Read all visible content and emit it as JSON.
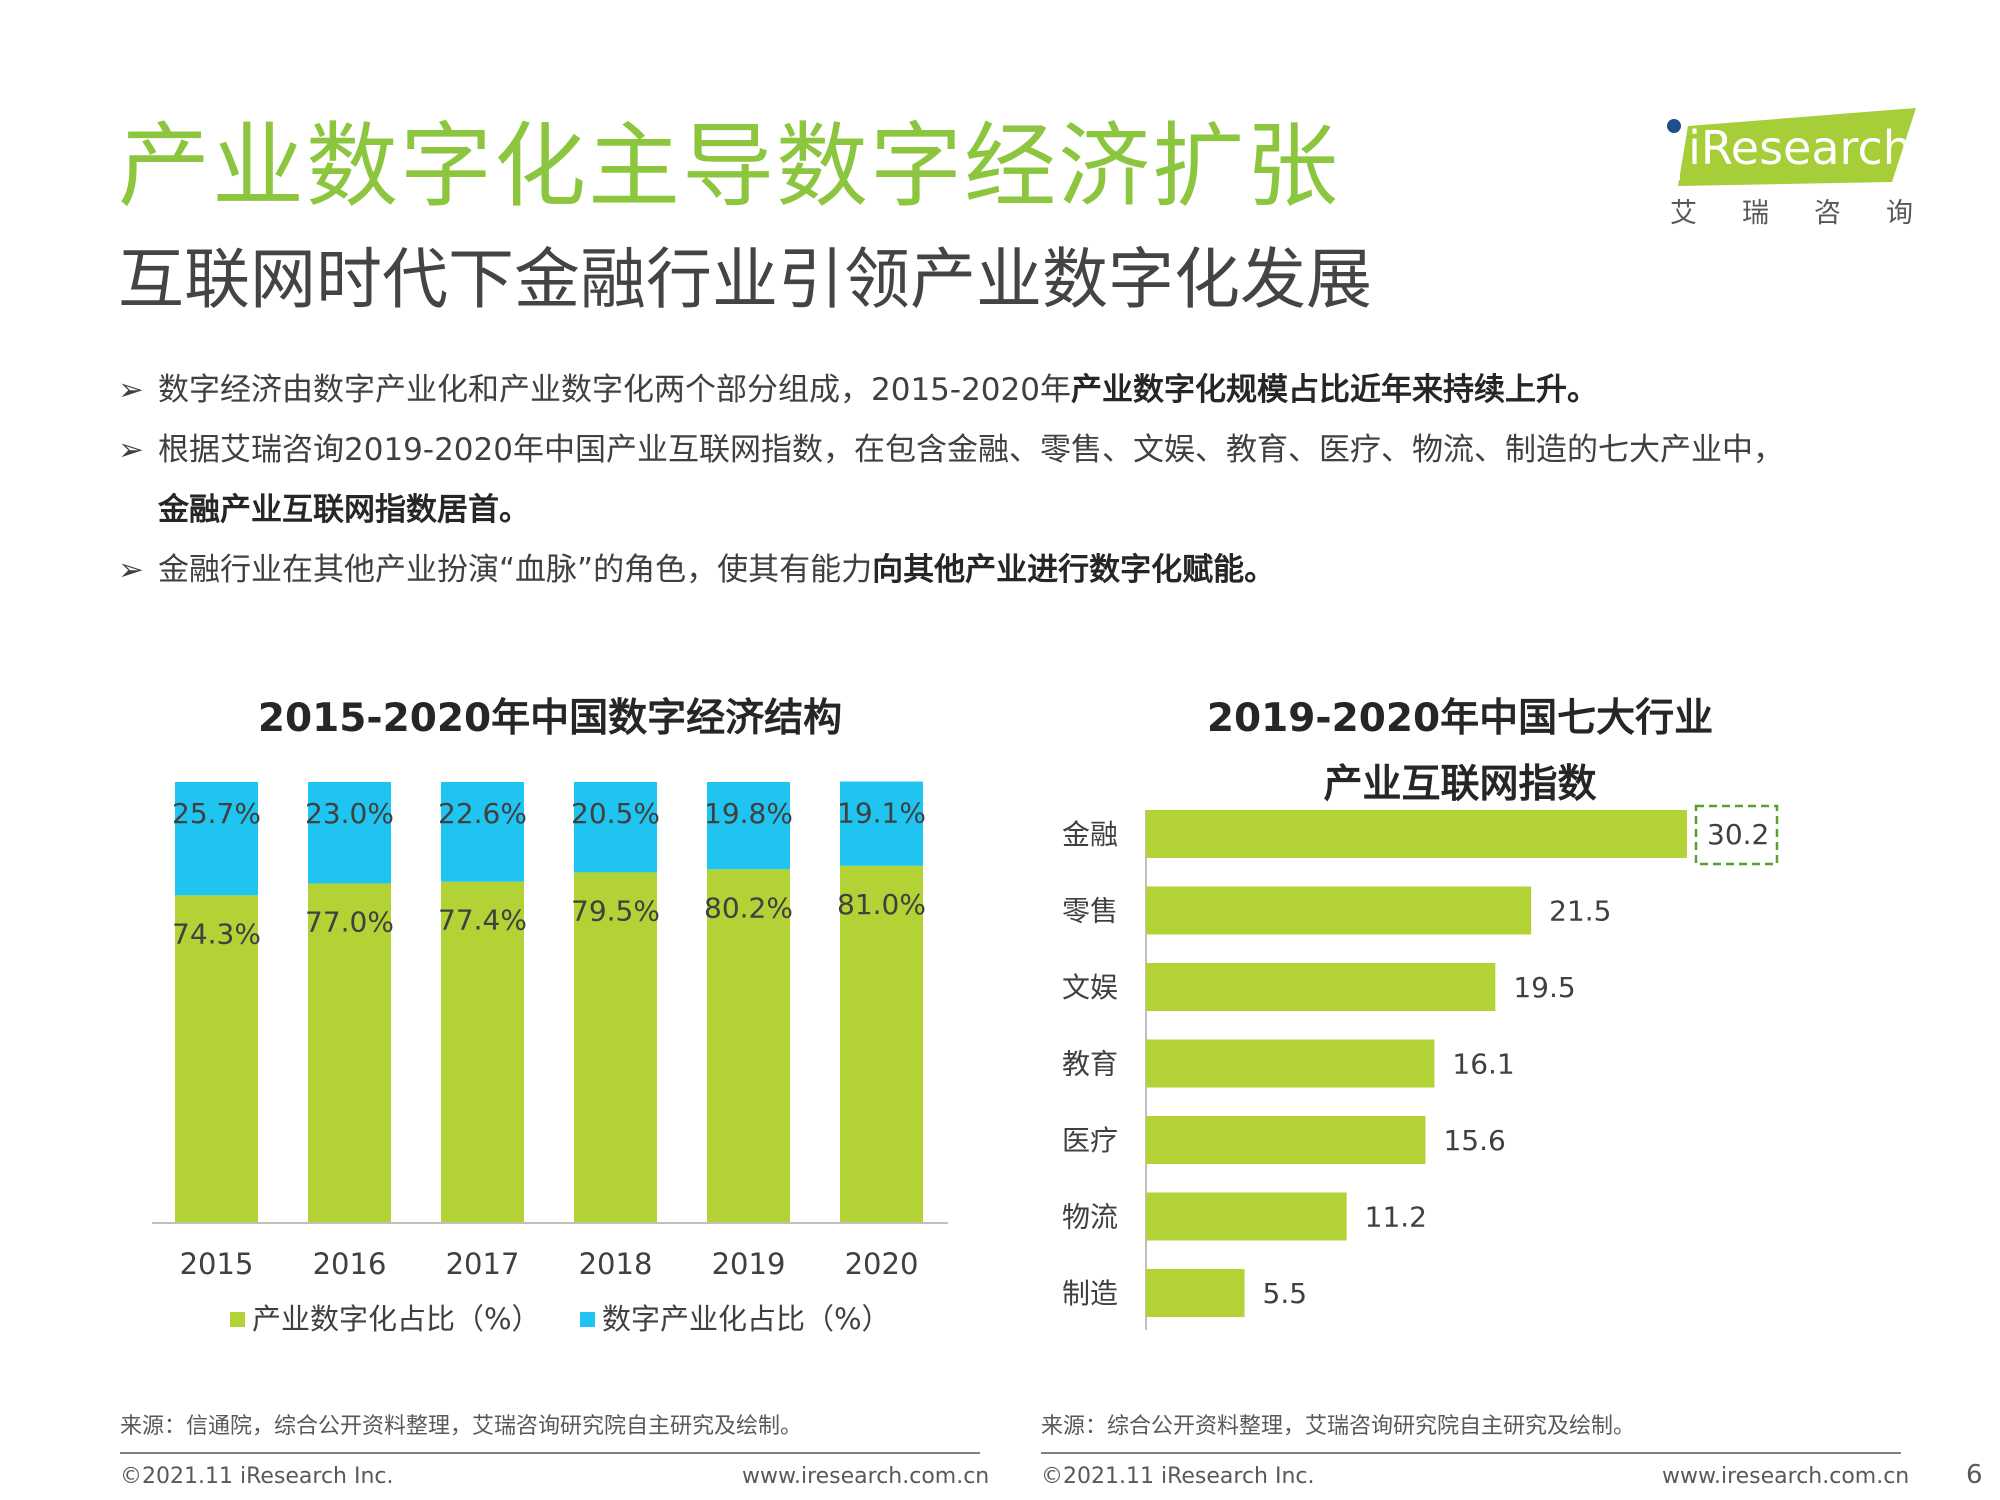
{
  "header": {
    "title": "产业数字化主导数字经济扩张",
    "subtitle": "互联网时代下金融行业引领产业数字化发展"
  },
  "logo": {
    "brand": "iResearch",
    "cn_chars": [
      "艾",
      "瑞",
      "咨",
      "询"
    ]
  },
  "bullets": {
    "arrow": "➢",
    "b1_normal": "数字经济由数字产业化和产业数字化两个部分组成，2015-2020年",
    "b1_bold": "产业数字化规模占比近年来持续上升。",
    "b2_normal": "根据艾瑞咨询2019-2020年中国产业互联网指数，在包含金融、零售、文娱、教育、医疗、物流、制造的七大产业中，",
    "b2_bold": "金融产业互联网指数居首。",
    "b3_normal": "金融行业在其他产业扮演“血脉”的角色，使其有能力",
    "b3_bold": "向其他产业进行数字化赋能。"
  },
  "chart_data": [
    {
      "type": "bar",
      "stacked": true,
      "title": "2015-2020年中国数字经济结构",
      "categories": [
        "2015",
        "2016",
        "2017",
        "2018",
        "2019",
        "2020"
      ],
      "series": [
        {
          "name": "产业数字化占比（%）",
          "values": [
            74.3,
            77.0,
            77.4,
            79.5,
            80.2,
            81.0
          ],
          "labels": [
            "74.3%",
            "77.0%",
            "77.4%",
            "79.5%",
            "80.2%",
            "81.0%"
          ],
          "color": "#b2d235"
        },
        {
          "name": "数字产业化占比（%）",
          "values": [
            25.7,
            23.0,
            22.6,
            20.5,
            19.8,
            19.1
          ],
          "labels": [
            "25.7%",
            "23.0%",
            "22.6%",
            "20.5%",
            "19.8%",
            "19.1%"
          ],
          "color": "#1fc4f0"
        }
      ],
      "ylim": [
        0,
        100
      ],
      "legend": "bottom",
      "grid": false
    },
    {
      "type": "bar",
      "orientation": "horizontal",
      "title_lines": [
        "2019-2020年中国七大行业",
        "产业互联网指数"
      ],
      "categories": [
        "金融",
        "零售",
        "文娱",
        "教育",
        "医疗",
        "物流",
        "制造"
      ],
      "values": [
        30.2,
        21.5,
        19.5,
        16.1,
        15.6,
        11.2,
        5.5
      ],
      "labels": [
        "30.2",
        "21.5",
        "19.5",
        "16.1",
        "15.6",
        "11.2",
        "5.5"
      ],
      "color": "#b2d235",
      "highlight_color": "#5aa02c",
      "highlight_index": 0,
      "xlim": [
        0,
        30.2
      ],
      "grid": false
    }
  ],
  "footer": {
    "source_left": "来源：信通院，综合公开资料整理，艾瑞咨询研究院自主研究及绘制。",
    "source_right": "来源：综合公开资料整理，艾瑞咨询研究院自主研究及绘制。",
    "copyright": "©2021.11 iResearch Inc.",
    "website": "www.iresearch.com.cn",
    "page_number": "6"
  }
}
